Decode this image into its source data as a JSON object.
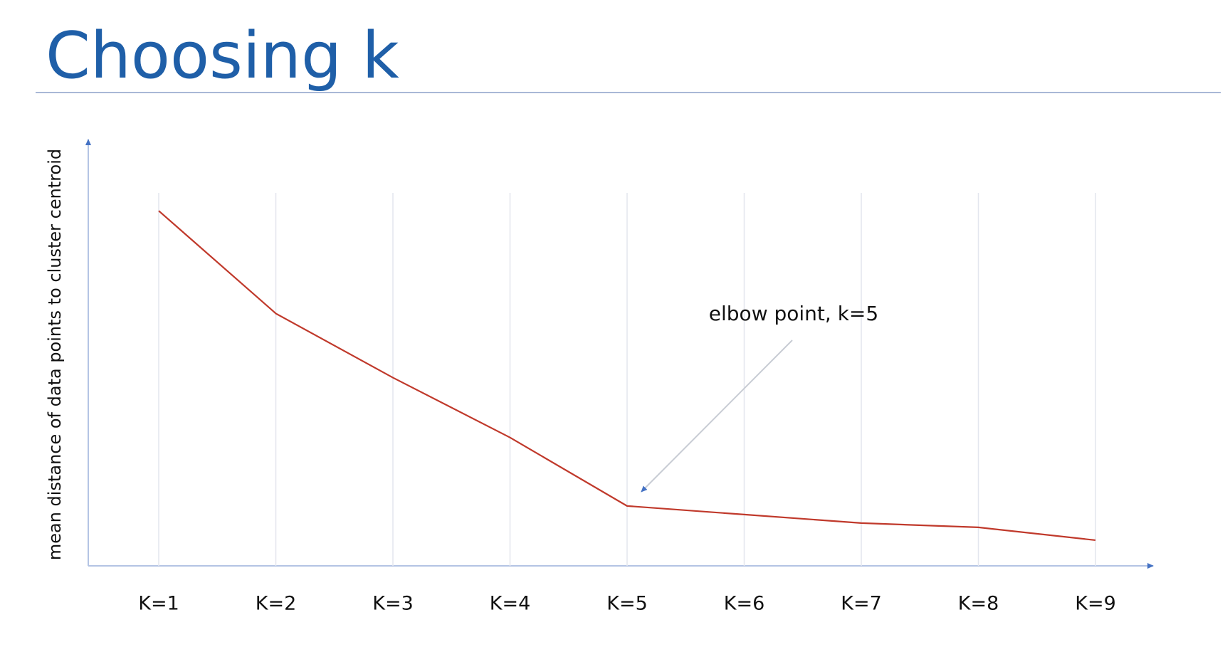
{
  "chart_data": {
    "type": "line",
    "title": "Choosing k",
    "y_label": "mean distance of data points to cluster centroid",
    "categories": [
      "K=1",
      "K=2",
      "K=3",
      "K=4",
      "K=5",
      "K=6",
      "K=7",
      "K=8",
      "K=9"
    ],
    "values": [
      83,
      59,
      44,
      30,
      14,
      12,
      10,
      9,
      6
    ],
    "color": "#c0392b",
    "ylim": [
      0,
      100
    ],
    "grid": true,
    "annotation": {
      "text": "elbow point, k=5",
      "category": 4
    }
  }
}
